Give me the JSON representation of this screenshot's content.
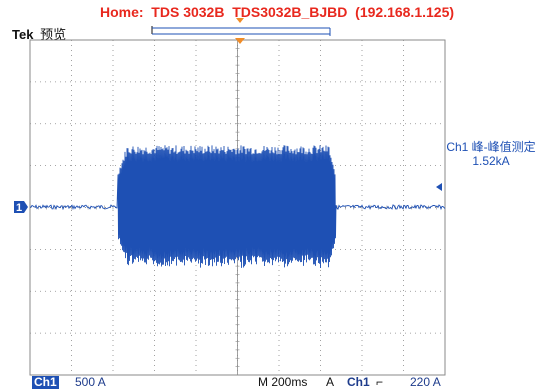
{
  "window": {
    "home_title": "Home:  TDS 3032B  TDS3032B_BJBD  (192.168.1.125)"
  },
  "scope_header": {
    "brand": "Tek",
    "mode": "预览"
  },
  "ch1_marker": "1",
  "measurement": {
    "label": "Ch1 峰-峰值测定",
    "value": "1.52kA"
  },
  "status_bar": {
    "channel": "Ch1",
    "volts_per_div": "500 A",
    "timebase": "M 200ms",
    "trigger_mode": "A",
    "trigger_source": "Ch1",
    "trigger_slope": "⌐",
    "trigger_level": "220 A"
  },
  "colors": {
    "waveform": "#1e50b4",
    "title": "#e8281e",
    "trigger_marker": "#f08c28",
    "grid": "#8a8a8a"
  },
  "chart_data": {
    "type": "line",
    "series": [
      {
        "values": [
          {
            "t_div": 0.0,
            "level": "baseline (noise only)"
          },
          {
            "t_div": 2.1,
            "level": "burst start, envelope ±1.52 kA pk-pk"
          },
          {
            "t_div": 7.35,
            "level": "burst end, back to baseline"
          },
          {
            "t_div": 10.0,
            "level": "baseline (noise only)"
          }
        ]
      }
    ],
    "grid": true,
    "divisions": {
      "x": 10,
      "y": 8
    },
    "xlim": [
      0,
      10
    ],
    "ylim": [
      -4,
      4
    ]
  }
}
